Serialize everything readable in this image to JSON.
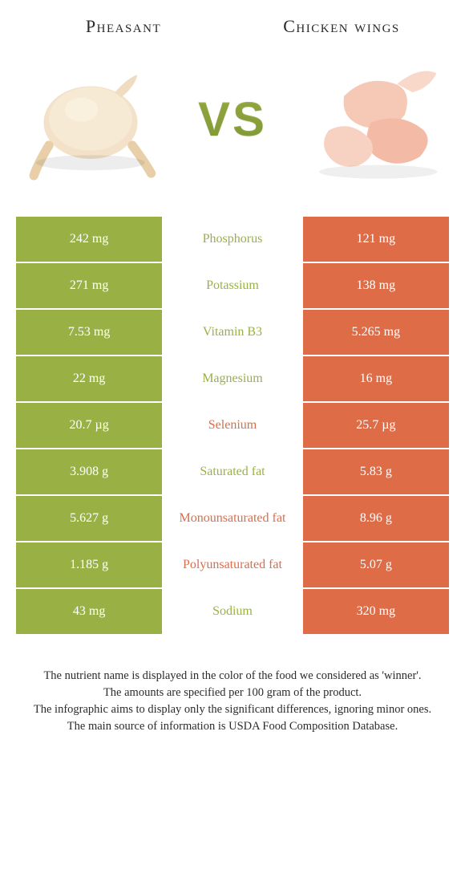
{
  "colors": {
    "left": "#99b144",
    "right": "#dd6c47",
    "white": "#ffffff",
    "text": "#2b2b2b"
  },
  "food_left": {
    "title": "Pheasant"
  },
  "food_right": {
    "title": "Chicken wings"
  },
  "vs_label": "VS",
  "rows": [
    {
      "name": "Phosphorus",
      "left": "242 mg",
      "right": "121 mg",
      "winner": "left"
    },
    {
      "name": "Potassium",
      "left": "271 mg",
      "right": "138 mg",
      "winner": "left"
    },
    {
      "name": "Vitamin B3",
      "left": "7.53 mg",
      "right": "5.265 mg",
      "winner": "left"
    },
    {
      "name": "Magnesium",
      "left": "22 mg",
      "right": "16 mg",
      "winner": "left"
    },
    {
      "name": "Selenium",
      "left": "20.7 µg",
      "right": "25.7 µg",
      "winner": "right"
    },
    {
      "name": "Saturated fat",
      "left": "3.908 g",
      "right": "5.83 g",
      "winner": "left"
    },
    {
      "name": "Monounsaturated fat",
      "left": "5.627 g",
      "right": "8.96 g",
      "winner": "right"
    },
    {
      "name": "Polyunsaturated fat",
      "left": "1.185 g",
      "right": "5.07 g",
      "winner": "right"
    },
    {
      "name": "Sodium",
      "left": "43 mg",
      "right": "320 mg",
      "winner": "left"
    }
  ],
  "footer_lines": [
    "The nutrient name is displayed in the color of the food we considered as 'winner'.",
    "The amounts are specified per 100 gram of the product.",
    "The infographic aims to display only the significant differences, ignoring minor ones.",
    "The main source of information is USDA Food Composition Database."
  ]
}
